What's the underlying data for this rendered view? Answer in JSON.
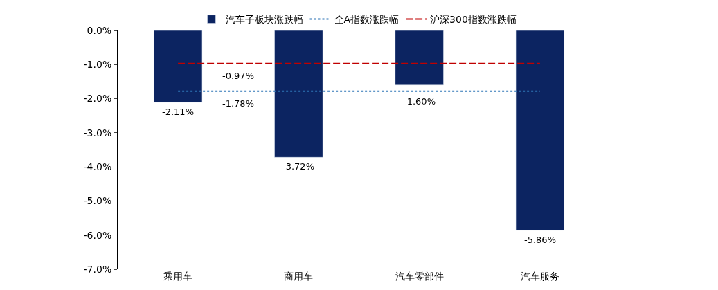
{
  "chart_data": {
    "type": "bar",
    "categories": [
      "乘用车",
      "商用车",
      "汽车零部件",
      "汽车服务"
    ],
    "series": [
      {
        "name": "汽车子板块涨跌幅",
        "color": "#0c2461",
        "values": [
          -2.11,
          -3.72,
          -1.6,
          -5.86
        ],
        "value_labels": [
          "-2.11%",
          "-3.72%",
          "-1.60%",
          "-5.86%"
        ]
      },
      {
        "name": "全A指数涨跌幅",
        "type": "line",
        "line_style": "dotted",
        "color": "#2e75b6",
        "values": [
          -1.78,
          -1.78,
          -1.78,
          -1.78
        ]
      },
      {
        "name": "沪深300指数涨跌幅",
        "type": "line",
        "line_style": "dashed",
        "color": "#c00000",
        "values": [
          -0.97,
          -0.97,
          -0.97,
          -0.97
        ]
      }
    ],
    "annotations": [
      {
        "text": "-0.97%",
        "y": -0.97
      },
      {
        "text": "-1.78%",
        "y": -1.78
      }
    ],
    "ylim": [
      -7,
      0
    ],
    "yticks": [
      {
        "value": 0,
        "label": "0.0%"
      },
      {
        "value": -1,
        "label": "-1.0%"
      },
      {
        "value": -2,
        "label": "-2.0%"
      },
      {
        "value": -3,
        "label": "-3.0%"
      },
      {
        "value": -4,
        "label": "-4.0%"
      },
      {
        "value": -5,
        "label": "-5.0%"
      },
      {
        "value": -6,
        "label": "-6.0%"
      },
      {
        "value": -7,
        "label": "-7.0%"
      }
    ],
    "legend": "top",
    "marker": "none"
  }
}
